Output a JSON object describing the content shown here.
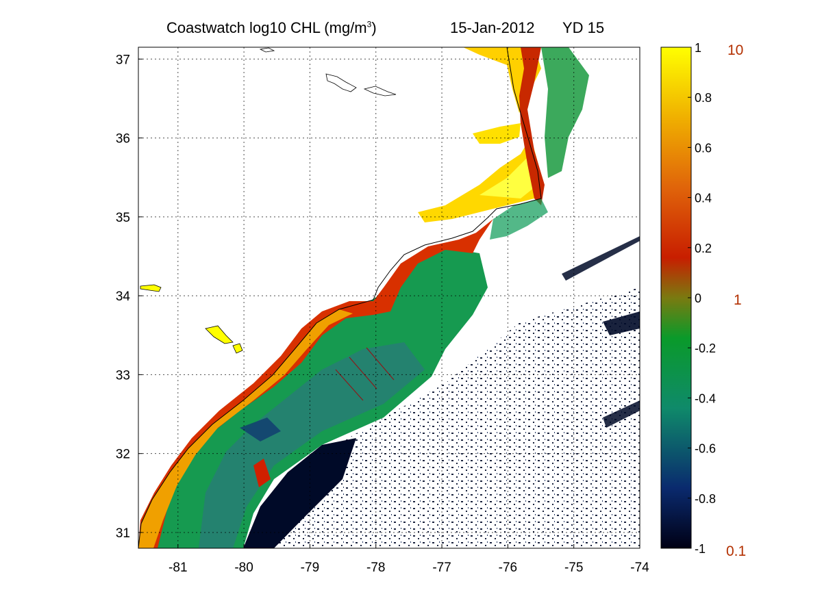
{
  "title": {
    "main": "Coastwatch  log10  CHL (mg/m",
    "sup": "3",
    "close": ")",
    "date": "15-Jan-2012",
    "yearday": "YD 15"
  },
  "map": {
    "lon_range": [
      -81.6,
      -74
    ],
    "lat_range": [
      30.8,
      37.15
    ],
    "lon_ticks": [
      "-81",
      "-80",
      "-79",
      "-78",
      "-77",
      "-76",
      "-75",
      "-74"
    ],
    "lat_ticks": [
      "37",
      "36",
      "35",
      "34",
      "33",
      "32",
      "31"
    ],
    "grid": true,
    "land_color": "#ffffff",
    "coast_line_color": "#000000",
    "track_color": "#8b1a1a"
  },
  "colorbar": {
    "ticks": [
      "1",
      "0.8",
      "0.6",
      "0.4",
      "0.2",
      "0",
      "-0.2",
      "-0.4",
      "-0.6",
      "-0.8",
      "-1"
    ],
    "linear_labels": [
      "10",
      "1",
      "0.1"
    ],
    "linear_label_color": "#b33000",
    "colors": [
      "#000014",
      "#0a2a6e",
      "#0f8a6a",
      "#0a9a2a",
      "#7a7a10",
      "#c81e00",
      "#e0640a",
      "#f0b000",
      "#ffff00"
    ]
  }
}
